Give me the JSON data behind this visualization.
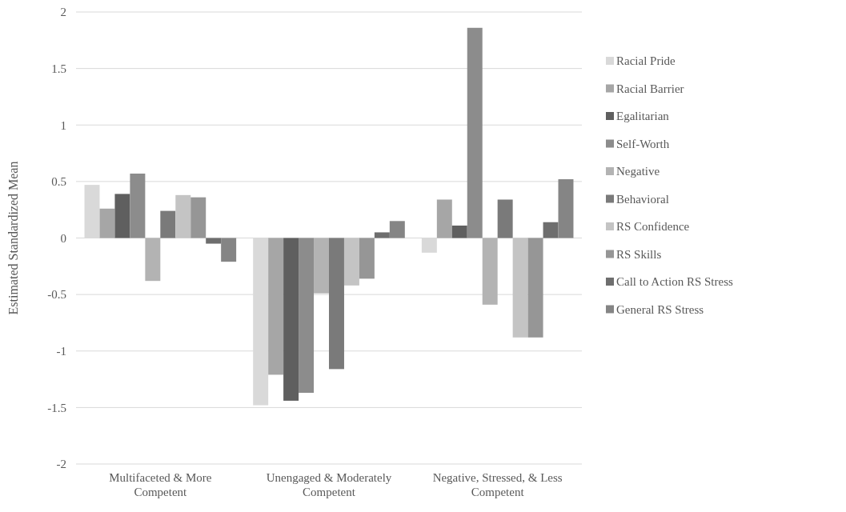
{
  "chart_data": {
    "type": "bar",
    "ylabel": "Estimated Standardized Mean",
    "categories": [
      "Multifaceted & More Competent",
      "Unengaged & Moderately Competent",
      "Negative, Stressed, & Less Competent"
    ],
    "series": [
      {
        "name": "Racial Pride",
        "color": "#d9d9d9",
        "values": [
          0.47,
          -1.48,
          -0.13
        ]
      },
      {
        "name": "Racial Barrier",
        "color": "#a6a6a6",
        "values": [
          0.26,
          -1.21,
          0.34
        ]
      },
      {
        "name": "Egalitarian",
        "color": "#5f5f5f",
        "values": [
          0.39,
          -1.44,
          0.11
        ]
      },
      {
        "name": "Self-Worth",
        "color": "#8c8c8c",
        "values": [
          0.57,
          -1.37,
          1.86
        ]
      },
      {
        "name": "Negative",
        "color": "#b3b3b3",
        "values": [
          -0.38,
          -0.49,
          -0.59
        ]
      },
      {
        "name": "Behavioral",
        "color": "#7a7a7a",
        "values": [
          0.24,
          -1.16,
          0.34
        ]
      },
      {
        "name": "RS Confidence",
        "color": "#c4c4c4",
        "values": [
          0.38,
          -0.42,
          -0.88
        ]
      },
      {
        "name": "RS Skills",
        "color": "#969696",
        "values": [
          0.36,
          -0.36,
          -0.88
        ]
      },
      {
        "name": "Call to Action RS Stress",
        "color": "#6e6e6e",
        "values": [
          -0.05,
          0.05,
          0.14
        ]
      },
      {
        "name": "General RS Stress",
        "color": "#858585",
        "values": [
          -0.21,
          0.15,
          0.52
        ]
      }
    ],
    "ylim": [
      -2,
      2
    ],
    "yticks": [
      -2,
      -1.5,
      -1,
      -0.5,
      0,
      0.5,
      1,
      1.5,
      2
    ],
    "grid": "y",
    "legend": "right"
  }
}
